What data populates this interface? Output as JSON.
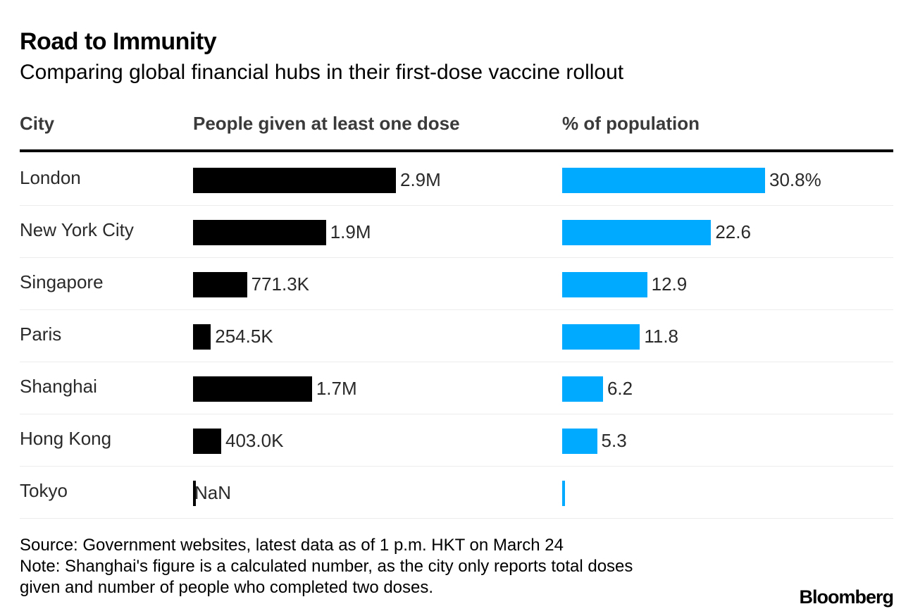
{
  "title": "Road to Immunity",
  "subtitle": "Comparing global financial hubs in their first-dose vaccine rollout",
  "columns": {
    "city": "City",
    "doses": "People given at least one dose",
    "percent": "% of population"
  },
  "colors": {
    "doses_bar": "#000000",
    "percent_bar": "#00aaff"
  },
  "chart_data": {
    "type": "bar",
    "orientation": "horizontal",
    "categories": [
      "London",
      "New York City",
      "Singapore",
      "Paris",
      "Shanghai",
      "Hong Kong",
      "Tokyo"
    ],
    "series": [
      {
        "name": "People given at least one dose",
        "values": [
          2900000,
          1900000,
          771300,
          254500,
          1700000,
          403000,
          null
        ],
        "labels": [
          "2.9M",
          "1.9M",
          "771.3K",
          "254.5K",
          "1.7M",
          "403.0K",
          "NaN"
        ]
      },
      {
        "name": "% of population",
        "values": [
          30.8,
          22.6,
          12.9,
          11.8,
          6.2,
          5.3,
          null
        ],
        "labels": [
          "30.8%",
          "22.6",
          "12.9",
          "11.8",
          "6.2",
          "5.3",
          ""
        ]
      }
    ]
  },
  "footer": {
    "source": "Source: Government websites, latest data as of 1 p.m. HKT on March 24",
    "note_line1": "Note: Shanghai's figure is a calculated number, as the city only reports total doses",
    "note_line2": "given and number of people who completed two doses."
  },
  "logo": "Bloomberg"
}
